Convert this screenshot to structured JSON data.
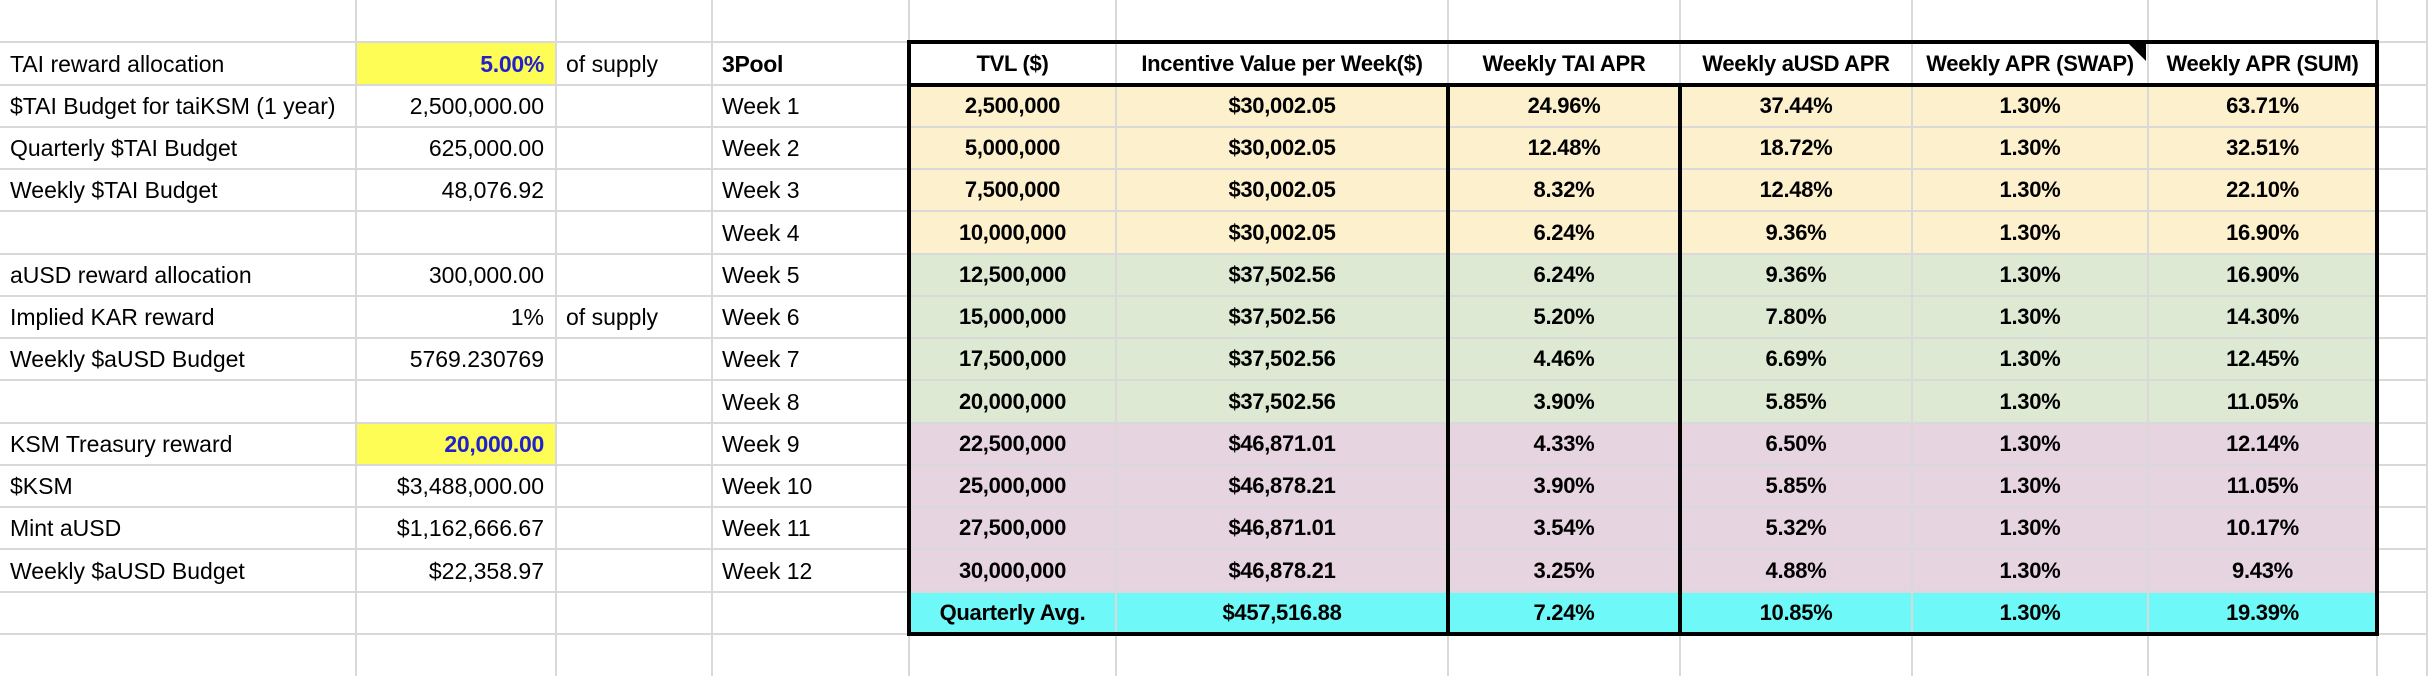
{
  "sheet": {
    "colors": {
      "highlight_yellow": "#fdfd55",
      "highlight_text_blue": "#2222cc",
      "band_q1": "#fcf0cd",
      "band_q2": "#dde9d3",
      "band_q3": "#e6d4e0",
      "summary_cyan": "#6ef8f8",
      "gridline": "#d9d9d9",
      "border_black": "#000000"
    },
    "left_panel": {
      "rows": [
        {
          "label": "TAI reward allocation",
          "value": "5.00%",
          "note": "of supply",
          "highlight": true
        },
        {
          "label": "$TAI Budget for taiKSM (1 year)",
          "value": "2,500,000.00",
          "note": "",
          "highlight": false
        },
        {
          "label": "Quarterly $TAI Budget",
          "value": "625,000.00",
          "note": "",
          "highlight": false
        },
        {
          "label": "Weekly $TAI Budget",
          "value": "48,076.92",
          "note": "",
          "highlight": false
        },
        {
          "label": "",
          "value": "",
          "note": "",
          "highlight": false
        },
        {
          "label": "aUSD reward allocation",
          "value": "300,000.00",
          "note": "",
          "highlight": false
        },
        {
          "label": "Implied KAR reward",
          "value": "1%",
          "note": "of supply",
          "highlight": false
        },
        {
          "label": "Weekly $aUSD Budget",
          "value": "5769.230769",
          "note": "",
          "highlight": false
        },
        {
          "label": "",
          "value": "",
          "note": "",
          "highlight": false
        },
        {
          "label": "KSM Treasury reward",
          "value": "20,000.00",
          "note": "",
          "highlight": true
        },
        {
          "label": "$KSM",
          "value": "$3,488,000.00",
          "note": "",
          "highlight": false
        },
        {
          "label": "Mint aUSD",
          "value": "$1,162,666.67",
          "note": "",
          "highlight": false
        },
        {
          "label": "Weekly $aUSD Budget",
          "value": "$22,358.97",
          "note": "",
          "highlight": false
        }
      ]
    },
    "pool_table": {
      "pool_header": "3Pool",
      "columns": [
        "TVL ($)",
        "Incentive Value per Week($)",
        "Weekly TAI APR",
        "Weekly aUSD APR",
        "Weekly APR (SWAP)",
        "Weekly APR (SUM)"
      ],
      "note_marker_column": "Weekly APR (SWAP)",
      "weeks": [
        {
          "week": "Week 1",
          "tvl": "2,500,000",
          "incentive": "$30,002.05",
          "tai_apr": "24.96%",
          "ausd_apr": "37.44%",
          "swap_apr": "1.30%",
          "sum_apr": "63.71%",
          "band": "q1"
        },
        {
          "week": "Week 2",
          "tvl": "5,000,000",
          "incentive": "$30,002.05",
          "tai_apr": "12.48%",
          "ausd_apr": "18.72%",
          "swap_apr": "1.30%",
          "sum_apr": "32.51%",
          "band": "q1"
        },
        {
          "week": "Week 3",
          "tvl": "7,500,000",
          "incentive": "$30,002.05",
          "tai_apr": "8.32%",
          "ausd_apr": "12.48%",
          "swap_apr": "1.30%",
          "sum_apr": "22.10%",
          "band": "q1"
        },
        {
          "week": "Week 4",
          "tvl": "10,000,000",
          "incentive": "$30,002.05",
          "tai_apr": "6.24%",
          "ausd_apr": "9.36%",
          "swap_apr": "1.30%",
          "sum_apr": "16.90%",
          "band": "q1"
        },
        {
          "week": "Week 5",
          "tvl": "12,500,000",
          "incentive": "$37,502.56",
          "tai_apr": "6.24%",
          "ausd_apr": "9.36%",
          "swap_apr": "1.30%",
          "sum_apr": "16.90%",
          "band": "q2"
        },
        {
          "week": "Week 6",
          "tvl": "15,000,000",
          "incentive": "$37,502.56",
          "tai_apr": "5.20%",
          "ausd_apr": "7.80%",
          "swap_apr": "1.30%",
          "sum_apr": "14.30%",
          "band": "q2"
        },
        {
          "week": "Week 7",
          "tvl": "17,500,000",
          "incentive": "$37,502.56",
          "tai_apr": "4.46%",
          "ausd_apr": "6.69%",
          "swap_apr": "1.30%",
          "sum_apr": "12.45%",
          "band": "q2"
        },
        {
          "week": "Week 8",
          "tvl": "20,000,000",
          "incentive": "$37,502.56",
          "tai_apr": "3.90%",
          "ausd_apr": "5.85%",
          "swap_apr": "1.30%",
          "sum_apr": "11.05%",
          "band": "q2"
        },
        {
          "week": "Week 9",
          "tvl": "22,500,000",
          "incentive": "$46,871.01",
          "tai_apr": "4.33%",
          "ausd_apr": "6.50%",
          "swap_apr": "1.30%",
          "sum_apr": "12.14%",
          "band": "q3"
        },
        {
          "week": "Week 10",
          "tvl": "25,000,000",
          "incentive": "$46,878.21",
          "tai_apr": "3.90%",
          "ausd_apr": "5.85%",
          "swap_apr": "1.30%",
          "sum_apr": "11.05%",
          "band": "q3"
        },
        {
          "week": "Week 11",
          "tvl": "27,500,000",
          "incentive": "$46,871.01",
          "tai_apr": "3.54%",
          "ausd_apr": "5.32%",
          "swap_apr": "1.30%",
          "sum_apr": "10.17%",
          "band": "q3"
        },
        {
          "week": "Week 12",
          "tvl": "30,000,000",
          "incentive": "$46,878.21",
          "tai_apr": "3.25%",
          "ausd_apr": "4.88%",
          "swap_apr": "1.30%",
          "sum_apr": "9.43%",
          "band": "q3"
        }
      ],
      "summary": {
        "label": "Quarterly Avg.",
        "incentive": "$457,516.88",
        "tai_apr": "7.24%",
        "ausd_apr": "10.85%",
        "swap_apr": "1.30%",
        "sum_apr": "19.39%"
      }
    }
  }
}
